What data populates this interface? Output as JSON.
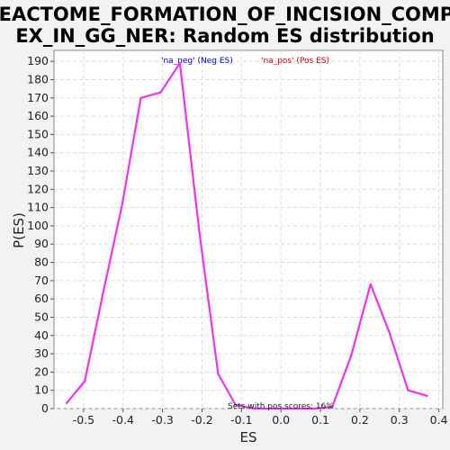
{
  "chart_data": {
    "type": "line",
    "title_lines": [
      "REACTOME_FORMATION_OF_INCISION_COMPL",
      "EX_IN_GG_NER: Random ES distribution"
    ],
    "xlabel": "ES",
    "ylabel": "P(ES)",
    "xlim": [
      -0.575,
      0.41
    ],
    "ylim": [
      0,
      196
    ],
    "x_ticks": [
      -0.5,
      -0.4,
      -0.3,
      -0.2,
      -0.1,
      0.0,
      0.1,
      0.2,
      0.3,
      0.4
    ],
    "x_tick_labels": [
      "-0.5",
      "-0.4",
      "-0.3",
      "-0.2",
      "-0.1",
      "0.0",
      "0.1",
      "0.2",
      "0.3",
      "0.4"
    ],
    "y_ticks": [
      0,
      10,
      20,
      30,
      40,
      50,
      60,
      70,
      80,
      90,
      100,
      110,
      120,
      130,
      140,
      150,
      160,
      170,
      180,
      190
    ],
    "grid": true,
    "legend": [
      {
        "label": "'na_neg' (Neg ES)",
        "color": "#0000cc"
      },
      {
        "label": "'na_pos' (Pos ES)",
        "color": "#cc0000"
      }
    ],
    "annotation": "Sets with pos scores: 16%",
    "series": [
      {
        "color": "#ee33ee",
        "x": [
          -0.543,
          -0.497,
          -0.449,
          -0.402,
          -0.355,
          -0.305,
          -0.256,
          -0.207,
          -0.159,
          -0.115,
          -0.068,
          0.085,
          0.13,
          0.178,
          0.227,
          0.274,
          0.322,
          0.37
        ],
        "y": [
          3,
          15,
          65,
          112,
          170,
          173,
          189,
          97,
          19,
          2,
          0,
          0,
          1,
          29,
          68,
          42,
          10,
          7
        ]
      }
    ]
  }
}
